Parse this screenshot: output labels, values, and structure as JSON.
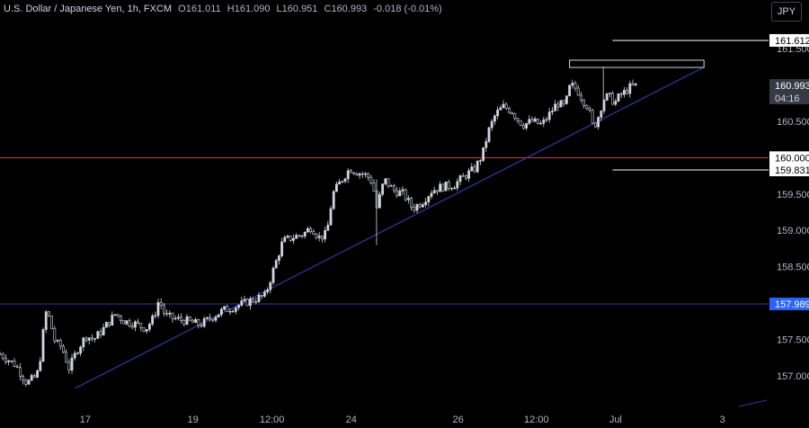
{
  "header": {
    "symbol": "U.S. Dollar / Japanese Yen, 1h, FXCM",
    "open_label": "O",
    "open": "161.011",
    "high_label": "H",
    "high": "161.090",
    "low_label": "L",
    "low": "160.951",
    "close_label": "C",
    "close": "160.993",
    "change": "-0.018 (-0.01%)"
  },
  "currency_button": "JPY",
  "colors": {
    "background": "#000000",
    "axis_text": "#b2b5be",
    "candle": "#d1d4dc",
    "support_red": "#f23645",
    "blue_line": "#2f3aa8",
    "blue_label": "#2962ff",
    "label_bg": "#ffffff",
    "label_text": "#000000"
  },
  "chart_data": {
    "type": "candlestick",
    "y_ticks": [
      "161.500",
      "160.500",
      "159.500",
      "159.000",
      "158.500",
      "157.500",
      "157.000"
    ],
    "x_ticks": [
      {
        "label": "17",
        "pos": 0.111
      },
      {
        "label": "19",
        "pos": 0.251
      },
      {
        "label": "12:00",
        "pos": 0.354
      },
      {
        "label": "24",
        "pos": 0.457
      },
      {
        "label": "26",
        "pos": 0.596
      },
      {
        "label": "12:00",
        "pos": 0.698
      },
      {
        "label": "Jul",
        "pos": 0.801
      },
      {
        "label": "3",
        "pos": 0.94
      }
    ],
    "price_labels": [
      {
        "text": "161.612",
        "value": 161.612,
        "style": "white"
      },
      {
        "text": "160.993",
        "value": 160.993,
        "style": "current",
        "sub": "04:16"
      },
      {
        "text": "160.000",
        "value": 160.0,
        "style": "white"
      },
      {
        "text": "159.831",
        "value": 159.831,
        "style": "white"
      },
      {
        "text": "157.989",
        "value": 157.989,
        "style": "blue"
      }
    ],
    "horizontal_lines": [
      {
        "value": 160.0,
        "color": "support_red",
        "from": 0.0
      },
      {
        "value": 157.989,
        "color": "blue_line",
        "from": 0.0
      },
      {
        "value": 161.612,
        "color": "label_bg",
        "from": 0.797
      },
      {
        "value": 159.831,
        "color": "label_bg",
        "from": 0.797
      }
    ],
    "trendline": {
      "from": {
        "x": 0.098,
        "value": 156.83
      },
      "to": {
        "x": 0.917,
        "value": 161.25
      }
    },
    "resistance_box": {
      "x1": 0.741,
      "x2": 0.916,
      "top": 161.34,
      "bottom": 161.24
    },
    "close_series": [
      [
        0.0,
        157.3
      ],
      [
        0.02,
        157.15
      ],
      [
        0.035,
        156.9
      ],
      [
        0.048,
        157.0
      ],
      [
        0.055,
        157.4
      ],
      [
        0.058,
        157.9
      ],
      [
        0.064,
        157.8
      ],
      [
        0.072,
        157.45
      ],
      [
        0.08,
        157.4
      ],
      [
        0.09,
        157.1
      ],
      [
        0.1,
        157.35
      ],
      [
        0.112,
        157.55
      ],
      [
        0.122,
        157.5
      ],
      [
        0.135,
        157.65
      ],
      [
        0.15,
        157.85
      ],
      [
        0.162,
        157.75
      ],
      [
        0.175,
        157.72
      ],
      [
        0.19,
        157.65
      ],
      [
        0.2,
        157.8
      ],
      [
        0.207,
        158.05
      ],
      [
        0.215,
        157.82
      ],
      [
        0.23,
        157.78
      ],
      [
        0.245,
        157.75
      ],
      [
        0.26,
        157.7
      ],
      [
        0.275,
        157.8
      ],
      [
        0.29,
        157.9
      ],
      [
        0.305,
        157.95
      ],
      [
        0.318,
        158.0
      ],
      [
        0.33,
        158.05
      ],
      [
        0.345,
        158.1
      ],
      [
        0.357,
        158.5
      ],
      [
        0.368,
        158.85
      ],
      [
        0.38,
        158.9
      ],
      [
        0.395,
        158.95
      ],
      [
        0.405,
        159.05
      ],
      [
        0.415,
        158.9
      ],
      [
        0.425,
        158.95
      ],
      [
        0.433,
        159.5
      ],
      [
        0.445,
        159.7
      ],
      [
        0.455,
        159.85
      ],
      [
        0.465,
        159.8
      ],
      [
        0.478,
        159.75
      ],
      [
        0.485,
        159.65
      ],
      [
        0.49,
        159.3
      ],
      [
        0.5,
        159.7
      ],
      [
        0.512,
        159.55
      ],
      [
        0.525,
        159.5
      ],
      [
        0.537,
        159.3
      ],
      [
        0.55,
        159.4
      ],
      [
        0.562,
        159.55
      ],
      [
        0.575,
        159.6
      ],
      [
        0.59,
        159.62
      ],
      [
        0.605,
        159.75
      ],
      [
        0.618,
        159.85
      ],
      [
        0.628,
        160.05
      ],
      [
        0.635,
        160.35
      ],
      [
        0.645,
        160.6
      ],
      [
        0.655,
        160.7
      ],
      [
        0.665,
        160.65
      ],
      [
        0.672,
        160.55
      ],
      [
        0.68,
        160.45
      ],
      [
        0.692,
        160.5
      ],
      [
        0.705,
        160.45
      ],
      [
        0.715,
        160.6
      ],
      [
        0.725,
        160.75
      ],
      [
        0.735,
        160.7
      ],
      [
        0.742,
        161.0
      ],
      [
        0.75,
        160.95
      ],
      [
        0.758,
        160.8
      ],
      [
        0.765,
        160.7
      ],
      [
        0.772,
        160.4
      ],
      [
        0.778,
        160.55
      ],
      [
        0.785,
        160.8
      ],
      [
        0.792,
        160.85
      ],
      [
        0.8,
        160.75
      ],
      [
        0.806,
        160.85
      ],
      [
        0.813,
        160.9
      ],
      [
        0.82,
        160.97
      ],
      [
        0.828,
        160.99
      ]
    ]
  }
}
